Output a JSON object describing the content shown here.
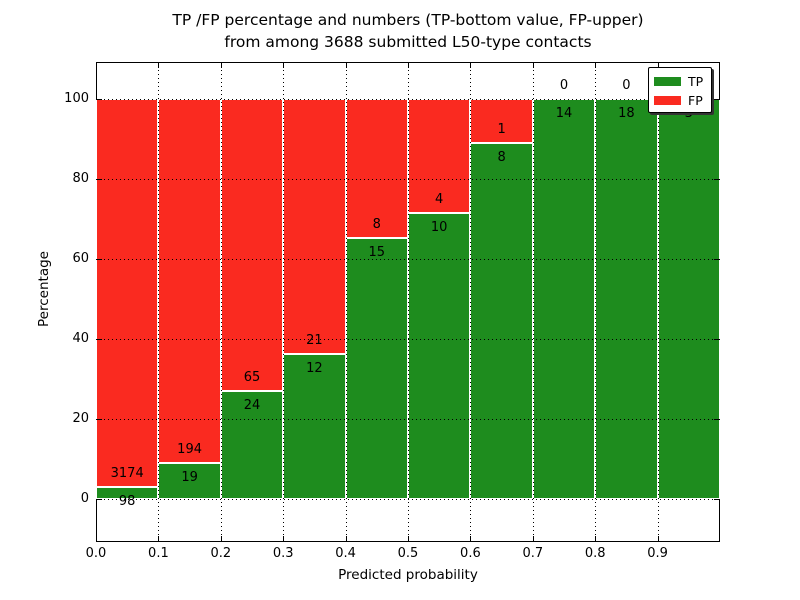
{
  "title": {
    "line1": "TP /FP percentage and numbers (TP-bottom value, FP-upper)",
    "line2": "from among 3688 submitted L50-type contacts"
  },
  "axes": {
    "xlabel": "Predicted probability",
    "ylabel": "Percentage",
    "x_tick_labels": [
      "0.0",
      "0.1",
      "0.2",
      "0.3",
      "0.4",
      "0.5",
      "0.6",
      "0.7",
      "0.8",
      "0.9"
    ],
    "y_tick_labels": [
      "0",
      "20",
      "40",
      "60",
      "80",
      "100"
    ],
    "y_tick_values": [
      0,
      20,
      40,
      60,
      80,
      100
    ]
  },
  "chart_data": {
    "type": "bar",
    "stacked": true,
    "normalized_to_percent": true,
    "title": "TP /FP percentage and numbers (TP-bottom value, FP-upper) from among 3688 submitted L50-type contacts",
    "xlabel": "Predicted probability",
    "ylabel": "Percentage",
    "total_contacts": 3688,
    "bins": [
      "0.0-0.1",
      "0.1-0.2",
      "0.2-0.3",
      "0.3-0.4",
      "0.4-0.5",
      "0.5-0.6",
      "0.6-0.7",
      "0.7-0.8",
      "0.8-0.9",
      "0.9-1.0"
    ],
    "bin_width": 0.1,
    "series": [
      {
        "name": "TP",
        "color": "#1e8c1e",
        "values": [
          98,
          19,
          24,
          12,
          15,
          10,
          8,
          14,
          18,
          3
        ]
      },
      {
        "name": "FP",
        "color": "#fa2a20",
        "values": [
          3174,
          194,
          65,
          21,
          8,
          4,
          1,
          0,
          0,
          0
        ]
      }
    ],
    "bar_label_note": "TP count printed below segment boundary, FP count above",
    "xlim": [
      0.0,
      1.0
    ],
    "ylim": [
      -10.75,
      109.25
    ],
    "grid": true,
    "grid_style": "dotted",
    "legend_position": "upper right",
    "legend_entries": [
      "TP",
      "FP"
    ]
  },
  "colors": {
    "tp_green": "#1e8c1e",
    "fp_red": "#fa2a20",
    "background": "#ffffff",
    "grid": "#000000",
    "bar_edge": "#ffffff"
  }
}
